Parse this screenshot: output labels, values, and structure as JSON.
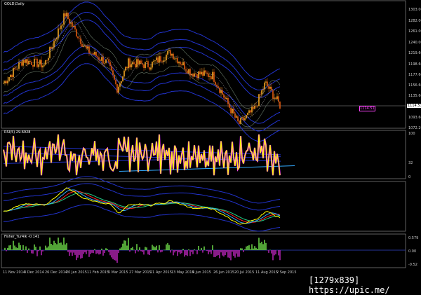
{
  "window": {
    "title": "GOLD,Daily"
  },
  "colors": {
    "bull": "#f5a623",
    "bear": "#e05a10",
    "band": "#2233cc",
    "rsi": "#ffff00",
    "rsi_highlight": "#ff44ff",
    "trend": "#33aaff",
    "fisher_pos": "#66cc44",
    "fisher_neg": "#aa22aa",
    "current_label": "#ff44ff"
  },
  "price_axis": [
    "1303.00",
    "1282.00",
    "1261.00",
    "1240.00",
    "1219.60",
    "1198.60",
    "1177.60",
    "1156.60",
    "1135.60",
    "1093.60",
    "1072.20"
  ],
  "current_price": "1114.51",
  "rsi": {
    "title": "RSI(5) 29.6928",
    "levels": [
      "100",
      "32",
      "0"
    ]
  },
  "fisher": {
    "title": "Fisher_Yur4ik -0.141",
    "levels": [
      "0.579",
      "0.00",
      "-0.52"
    ]
  },
  "time_axis": [
    "11 Nov 2014",
    "3 Dec 2014",
    "26 Dec 2014",
    "20 Jan 2015",
    "11 Feb 2015",
    "5 Mar 2015",
    "27 Mar 2015",
    "21 Apr 2015",
    "13 May 2015",
    "4 Jun 2015",
    "26 Jun 2015",
    "20 Jul 2015",
    "11 Aug 2015",
    "2 Sep 2015"
  ],
  "watermark": "[1279x839] https://upic.me/",
  "chart_data": {
    "type": "candlestick",
    "price_keypoints": [
      {
        "date": "11 Nov 2014",
        "close": 1160
      },
      {
        "date": "3 Dec 2014",
        "close": 1205
      },
      {
        "date": "26 Dec 2014",
        "close": 1195
      },
      {
        "date": "20 Jan 2015",
        "close": 1295
      },
      {
        "date": "11 Feb 2015",
        "close": 1225
      },
      {
        "date": "5 Mar 2015",
        "close": 1200
      },
      {
        "date": "17 Mar 2015",
        "close": 1150
      },
      {
        "date": "27 Mar 2015",
        "close": 1200
      },
      {
        "date": "21 Apr 2015",
        "close": 1195
      },
      {
        "date": "13 May 2015",
        "close": 1220
      },
      {
        "date": "4 Jun 2015",
        "close": 1180
      },
      {
        "date": "26 Jun 2015",
        "close": 1175
      },
      {
        "date": "24 Jul 2015",
        "close": 1080
      },
      {
        "date": "11 Aug 2015",
        "close": 1110
      },
      {
        "date": "21 Aug 2015",
        "close": 1160
      },
      {
        "date": "2 Sep 2015",
        "close": 1130
      },
      {
        "date": "4 Sep 2015",
        "close": 1114.51
      }
    ]
  }
}
